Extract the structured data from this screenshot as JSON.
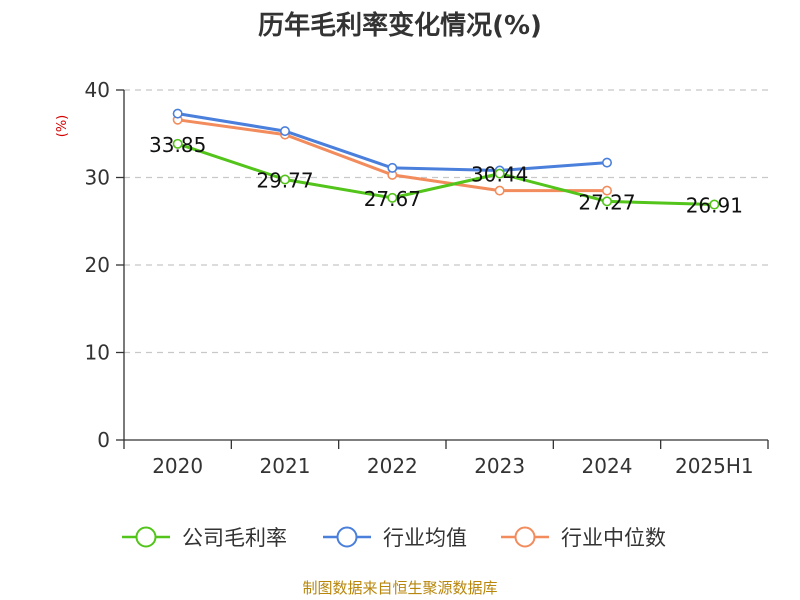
{
  "chart_data": {
    "type": "line",
    "title": "历年毛利率变化情况(%)",
    "ylabel": "(%)",
    "xlabel": "",
    "categories": [
      "2020",
      "2021",
      "2022",
      "2023",
      "2024",
      "2025H1"
    ],
    "ylim": [
      0,
      40
    ],
    "yticks": [
      0,
      10,
      20,
      30,
      40
    ],
    "grid": true,
    "legend_position": "bottom",
    "series": [
      {
        "name": "公司毛利率",
        "color": "#52c41a",
        "values": [
          33.85,
          29.77,
          27.67,
          30.44,
          27.27,
          26.91
        ],
        "show_labels": true
      },
      {
        "name": "行业均值",
        "color": "#4a7fdc",
        "values": [
          37.3,
          35.3,
          31.1,
          30.8,
          31.7,
          null
        ],
        "show_labels": false
      },
      {
        "name": "行业中位数",
        "color": "#f28c5c",
        "values": [
          36.6,
          34.9,
          30.3,
          28.5,
          28.5,
          null
        ],
        "show_labels": false
      }
    ]
  },
  "source": "制图数据来自恒生聚源数据库"
}
